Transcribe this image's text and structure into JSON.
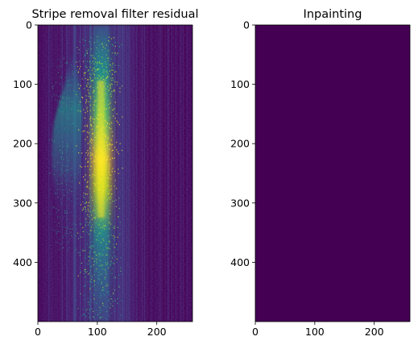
{
  "chart_data": [
    {
      "type": "heatmap",
      "title": "Stripe removal filter residual",
      "colormap": "viridis",
      "xlim": [
        0,
        260
      ],
      "ylim": [
        0,
        500
      ],
      "y_inverted": true,
      "xticks": [
        0,
        100,
        200
      ],
      "yticks": [
        0,
        100,
        200,
        300,
        400
      ],
      "xtick_labels": [
        "0",
        "100",
        "200"
      ],
      "ytick_labels": [
        "0",
        "100",
        "200",
        "300",
        "400"
      ],
      "bright_band": {
        "x_center": 110,
        "x_width": 20,
        "y_peak_range": [
          100,
          250
        ]
      },
      "secondary_band": {
        "x_center": 65,
        "y_range": [
          60,
          320
        ]
      }
    },
    {
      "type": "heatmap",
      "title": "Inpainting",
      "colormap": "viridis",
      "xlim": [
        0,
        260
      ],
      "ylim": [
        0,
        500
      ],
      "y_inverted": true,
      "fill_color": "#440154",
      "xticks": [
        0,
        100,
        200
      ],
      "yticks": [
        0,
        100,
        200,
        300,
        400
      ],
      "xtick_labels": [
        "0",
        "100",
        "200"
      ],
      "ytick_labels": [
        "0",
        "100",
        "200",
        "300",
        "400"
      ]
    }
  ]
}
